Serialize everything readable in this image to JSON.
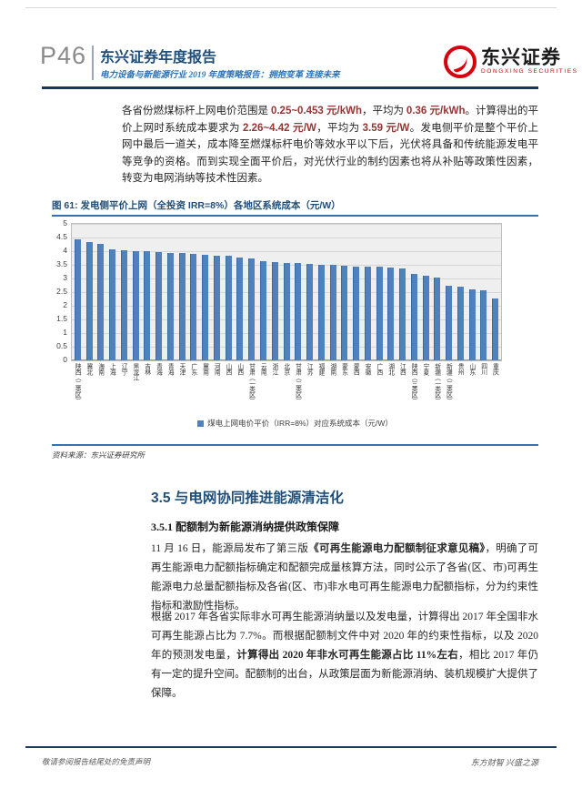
{
  "header": {
    "page_number": "P46",
    "report_title": "东兴证券年度报告",
    "report_subtitle": "电力设备与新能源行业 2019 年度策略报告：拥抱变革 连接未来",
    "brand_name": "东兴证券",
    "brand_name_en": "DONGXING SECURITIES"
  },
  "intro": {
    "segments": [
      {
        "t": "各省份燃煤标杆上网电价范围是 "
      },
      {
        "t": "0.25~0.453 元/kWh",
        "r": true
      },
      {
        "t": "，平均为 "
      },
      {
        "t": "0.36 元/kWh",
        "r": true
      },
      {
        "t": "。计算得出的平价上网时系统成本要求为 "
      },
      {
        "t": "2.26~4.42 元/W",
        "r": true
      },
      {
        "t": "，平均为 "
      },
      {
        "t": "3.59 元/W",
        "r": true
      },
      {
        "t": "。发电侧平价是整个平价上网中最后一道关，成本降至燃煤标杆电价等效水平以下后，光伏将具备和传统能源发电平等竞争的资格。而到实现全面平价后，对光伏行业的制约因素也将从补贴等政策性因素，转变为电网消纳等技术性因素。"
      }
    ]
  },
  "chart_data": {
    "type": "bar",
    "title": "图 61: 发电侧平价上网（全投资 IRR=8%）各地区系统成本（元/W）",
    "legend_label": "煤电上网电价平价（IRR=8%）对应系统成本（元/W）",
    "legend_position": "bottom",
    "grid": "on",
    "ylim": [
      0,
      5
    ],
    "ytick_step": 0.5,
    "bar_color": "#4f81bd",
    "plot_bg": "#efefef",
    "categories": [
      "陕西（二类区）",
      "冀北",
      "海南",
      "上海",
      "辽宁",
      "黑龙江",
      "吉林",
      "青海",
      "青海",
      "天津",
      "广东",
      "冀南",
      "河南",
      "山西",
      "山西",
      "甘肃（一类区）",
      "云南",
      "浙江",
      "北京",
      "甘肃（二类区）",
      "江苏",
      "福建",
      "湖南",
      "蒙东",
      "蒙西",
      "安徽",
      "广西",
      "湖北",
      "江西",
      "陕西（三类区）",
      "宁夏",
      "新疆（一类区）",
      "新疆（二类区）",
      "贵州",
      "山东",
      "四川",
      "重庆"
    ],
    "values": [
      4.42,
      4.34,
      4.27,
      4.06,
      4.03,
      4.01,
      4.0,
      3.98,
      3.95,
      3.93,
      3.9,
      3.87,
      3.85,
      3.82,
      3.78,
      3.74,
      3.62,
      3.6,
      3.58,
      3.56,
      3.53,
      3.51,
      3.49,
      3.47,
      3.45,
      3.44,
      3.43,
      3.41,
      3.37,
      3.17,
      3.11,
      3.03,
      2.74,
      2.7,
      2.61,
      2.56,
      2.26
    ]
  },
  "figure": {
    "source": "资料来源：东兴证券研究所"
  },
  "section": {
    "h2": "3.5 与电网协同推进能源清洁化",
    "h3": "3.5.1 配额制为新能源消纳提供政策保障",
    "p1_segments": [
      {
        "t": "11 月 16 日，能源局发布了第三版"
      },
      {
        "t": "《可再生能源电力配额制征求意见稿》",
        "b": true
      },
      {
        "t": "，明确了可再生能源电力配额指标确定和配额完成量核算方法，同时公示了各省(区、市)可再生能源电力总量配额指标及各省(区、市)非水电可再生能源电力配额指标，分为约束性指标和激励性指标。"
      }
    ],
    "p2_segments": [
      {
        "t": "根据 2017 年各省实际非水可再生能源消纳量以及发电量，计算得出 2017 年全国非水可再生能源占比为 7.7%。而根据配额制文件中对 2020 年的约束性指标，以及 2020 年的预测发电量，"
      },
      {
        "t": "计算得出 2020 年非水可再生能源占比 11%左右",
        "b": true
      },
      {
        "t": "，相比 2017 年仍有一定的提升空间。配额制的出台，从政策层面为新能源消纳、装机规模扩大提供了保障。"
      }
    ]
  },
  "footer": {
    "left": "敬请参阅报告结尾处的免责声明",
    "right": "东方财智 兴盛之源"
  },
  "colors": {
    "navy": "#17375e",
    "caption_blue": "#2e74b5",
    "bar_blue": "#4f81bd",
    "number_red": "#943634",
    "brand_red": "#d7000f"
  }
}
